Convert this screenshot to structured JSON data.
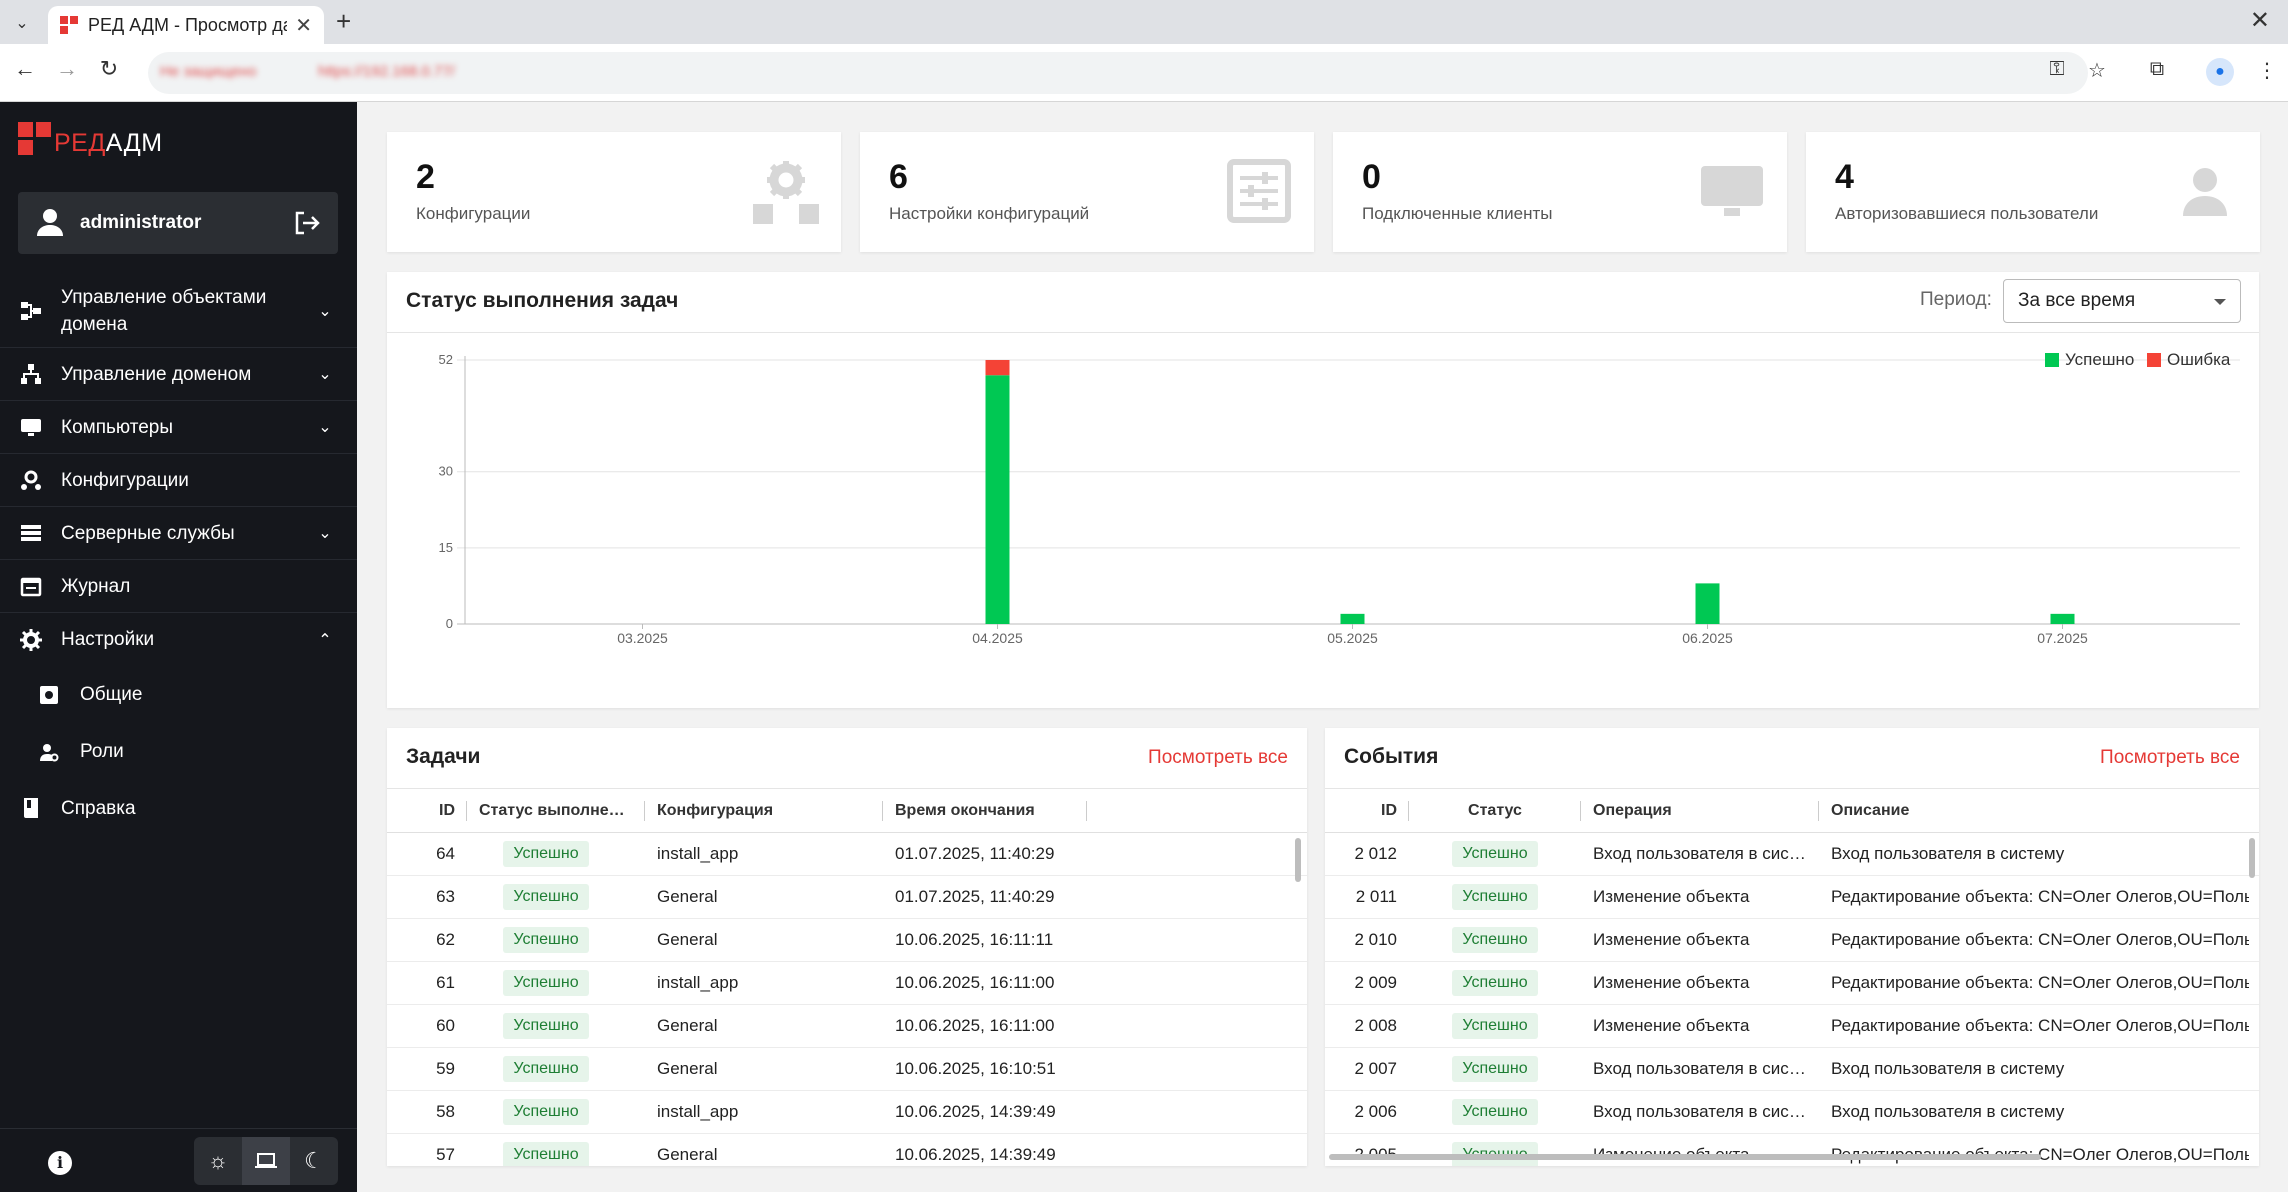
{
  "browser": {
    "tab_title": "РЕД АДМ - Просмотр данных",
    "url_security": "Не защищено",
    "url": "https://192.168.0.77/"
  },
  "sidebar": {
    "logo_red": "РЕД",
    "logo_white": "АДМ",
    "username": "administrator",
    "items": [
      {
        "label": "Управление объектами домена",
        "icon": "domain-objects-icon"
      },
      {
        "label": "Управление доменом",
        "icon": "domain-tree-icon"
      },
      {
        "label": "Компьютеры",
        "icon": "monitor-icon"
      },
      {
        "label": "Конфигурации",
        "icon": "config-gears-icon"
      },
      {
        "label": "Серверные службы",
        "icon": "list-icon"
      },
      {
        "label": "Журнал",
        "icon": "calendar-icon"
      },
      {
        "label": "Настройки",
        "icon": "gear-icon"
      },
      {
        "label": "Справка",
        "icon": "book-icon"
      }
    ],
    "settings_sub": [
      {
        "label": "Общие"
      },
      {
        "label": "Роли"
      }
    ]
  },
  "cards": [
    {
      "value": "2",
      "label": "Конфигурации",
      "icon": "gears-icon"
    },
    {
      "value": "6",
      "label": "Настройки конфигураций",
      "icon": "sliders-icon"
    },
    {
      "value": "0",
      "label": "Подключенные клиенты",
      "icon": "monitor-icon"
    },
    {
      "value": "4",
      "label": "Авторизовавшиеся пользователи",
      "icon": "user-icon"
    }
  ],
  "chart_panel": {
    "title": "Статус выполнения задач",
    "period_label": "Период:",
    "period_value": "За все время"
  },
  "chart_data": {
    "type": "bar",
    "stacked": true,
    "categories": [
      "03.2025",
      "04.2025",
      "05.2025",
      "06.2025",
      "07.2025"
    ],
    "series": [
      {
        "name": "Успешно",
        "color": "#00c853",
        "values": [
          0,
          49,
          2,
          8,
          2
        ]
      },
      {
        "name": "Ошибка",
        "color": "#f44336",
        "values": [
          0,
          3,
          0,
          0,
          0
        ]
      }
    ],
    "yticks": [
      0,
      15,
      30,
      52
    ],
    "ylim": [
      0,
      52
    ],
    "legend_position": "top-right",
    "grid": true
  },
  "tasks": {
    "title": "Задачи",
    "view_all": "Посмотреть все",
    "columns": [
      "ID",
      "Статус выполнения",
      "Конфигурация",
      "Время окончания"
    ],
    "rows": [
      {
        "id": "64",
        "status": "Успешно",
        "config": "install_app",
        "time": "01.07.2025, 11:40:29"
      },
      {
        "id": "63",
        "status": "Успешно",
        "config": "General",
        "time": "01.07.2025, 11:40:29"
      },
      {
        "id": "62",
        "status": "Успешно",
        "config": "General",
        "time": "10.06.2025, 16:11:11"
      },
      {
        "id": "61",
        "status": "Успешно",
        "config": "install_app",
        "time": "10.06.2025, 16:11:00"
      },
      {
        "id": "60",
        "status": "Успешно",
        "config": "General",
        "time": "10.06.2025, 16:11:00"
      },
      {
        "id": "59",
        "status": "Успешно",
        "config": "General",
        "time": "10.06.2025, 16:10:51"
      },
      {
        "id": "58",
        "status": "Успешно",
        "config": "install_app",
        "time": "10.06.2025, 14:39:49"
      },
      {
        "id": "57",
        "status": "Успешно",
        "config": "General",
        "time": "10.06.2025, 14:39:49"
      }
    ]
  },
  "events": {
    "title": "События",
    "view_all": "Посмотреть все",
    "columns": [
      "ID",
      "Статус",
      "Операция",
      "Описание"
    ],
    "rows": [
      {
        "id": "2 012",
        "status": "Успешно",
        "operation": "Вход пользователя в систему",
        "description": "Вход пользователя в систему"
      },
      {
        "id": "2 011",
        "status": "Успешно",
        "operation": "Изменение объекта",
        "description": "Редактирование объекта: CN=Олег Олегов,OU=Пользователи"
      },
      {
        "id": "2 010",
        "status": "Успешно",
        "operation": "Изменение объекта",
        "description": "Редактирование объекта: CN=Олег Олегов,OU=Пользователи"
      },
      {
        "id": "2 009",
        "status": "Успешно",
        "operation": "Изменение объекта",
        "description": "Редактирование объекта: CN=Олег Олегов,OU=Пользователи"
      },
      {
        "id": "2 008",
        "status": "Успешно",
        "operation": "Изменение объекта",
        "description": "Редактирование объекта: CN=Олег Олегов,OU=Пользователи"
      },
      {
        "id": "2 007",
        "status": "Успешно",
        "operation": "Вход пользователя в систему",
        "description": "Вход пользователя в систему"
      },
      {
        "id": "2 006",
        "status": "Успешно",
        "operation": "Вход пользователя в систему",
        "description": "Вход пользователя в систему"
      },
      {
        "id": "2 005",
        "status": "Успешно",
        "operation": "Изменение объекта",
        "description": "Редактирование объекта: CN=Олег Олегов,OU=Пользователи"
      }
    ]
  }
}
